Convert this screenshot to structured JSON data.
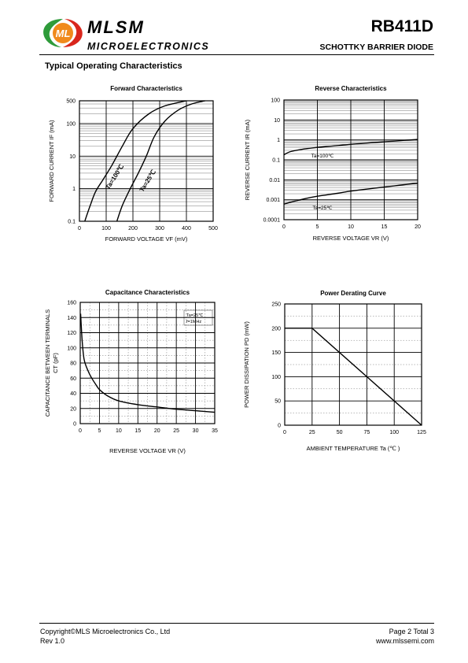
{
  "header": {
    "brand": "MLSM",
    "brand_sub": "MICROELECTRONICS",
    "logo_letters": "ML",
    "part_number": "RB411D",
    "part_desc": "SCHOTTKY BARRIER  DIODE"
  },
  "section_title": "Typical Operating Characteristics",
  "footer": {
    "copyright": "Copyright©MLS Microelectronics Co., Ltd",
    "rev": "Rev 1.0",
    "page": "Page 2 Total 3",
    "url": "www.mlssemi.com"
  },
  "colors": {
    "logo_green": "#2e9b3a",
    "logo_red": "#d9261c",
    "logo_orange": "#f08a1c"
  },
  "chart_data": [
    {
      "id": "forward",
      "type": "line",
      "title": "Forward  Characteristics",
      "xlabel": "FORWARD VOLTAGE  VF (mV)",
      "ylabel": "FORWARD CURRENT    IF (mA)",
      "xscale": "linear",
      "yscale": "log",
      "xlim": [
        0,
        500
      ],
      "ylim": [
        0.1,
        500
      ],
      "xticks": [
        0,
        100,
        200,
        300,
        400,
        500
      ],
      "yticks": [
        {
          "v": 0.1,
          "label": "0.1"
        },
        {
          "v": 1,
          "label": "1"
        },
        {
          "v": 10,
          "label": "10"
        },
        {
          "v": 100,
          "label": "100"
        },
        {
          "v": 500,
          "label": "500"
        }
      ],
      "grid": true,
      "series": [
        {
          "name": "Ta=100℃",
          "x": [
            20,
            40,
            60,
            90,
            120,
            160,
            200,
            260,
            320,
            400
          ],
          "y": [
            0.1,
            0.3,
            0.8,
            2,
            5,
            20,
            70,
            200,
            350,
            500
          ]
        },
        {
          "name": "Ta=25℃",
          "x": [
            140,
            160,
            190,
            220,
            250,
            280,
            320,
            370,
            420,
            470
          ],
          "y": [
            0.1,
            0.3,
            1,
            3,
            10,
            40,
            120,
            260,
            400,
            500
          ]
        }
      ],
      "annotations": [
        "Ta=100℃",
        "Ta=25℃"
      ]
    },
    {
      "id": "reverse",
      "type": "line",
      "title": "Reverse  Characteristics",
      "xlabel": "REVERSE VOLTAGE    VR (V)",
      "ylabel": "REVERSE CURRENT    IR  (mA)",
      "xscale": "linear",
      "yscale": "log",
      "xlim": [
        0,
        20
      ],
      "ylim": [
        0.0001,
        100
      ],
      "xticks": [
        0,
        5,
        10,
        15,
        20
      ],
      "yticks": [
        {
          "v": 0.0001,
          "label": "0.0001"
        },
        {
          "v": 0.001,
          "label": "0.001"
        },
        {
          "v": 0.01,
          "label": "0.01"
        },
        {
          "v": 0.1,
          "label": "0.1"
        },
        {
          "v": 1,
          "label": "1"
        },
        {
          "v": 10,
          "label": "10"
        },
        {
          "v": 100,
          "label": "100"
        }
      ],
      "grid": true,
      "series": [
        {
          "name": "Ta=100℃",
          "x": [
            0,
            1,
            3,
            5,
            8,
            10,
            13,
            15,
            18,
            20
          ],
          "y": [
            0.18,
            0.26,
            0.35,
            0.42,
            0.52,
            0.6,
            0.72,
            0.8,
            0.95,
            1.05
          ]
        },
        {
          "name": "Ta=25℃",
          "x": [
            0,
            1,
            3,
            5,
            8,
            10,
            13,
            15,
            18,
            20
          ],
          "y": [
            0.0006,
            0.00075,
            0.0011,
            0.0015,
            0.0021,
            0.0027,
            0.0036,
            0.0043,
            0.0057,
            0.0068
          ]
        }
      ],
      "annotations": [
        "Ta=100℃",
        "Ta=25℃"
      ]
    },
    {
      "id": "capacitance",
      "type": "line",
      "title": "Capacitance Characteristics",
      "xlabel": "REVERSE VOLTAGE    VR  (V)",
      "ylabel": "CAPACITANCE BETWEEN TERMINALS",
      "ylabel2": "CT (pF)",
      "xscale": "linear",
      "yscale": "linear",
      "xlim": [
        0,
        35
      ],
      "ylim": [
        0,
        160
      ],
      "xticks": [
        0,
        5,
        10,
        15,
        20,
        25,
        30,
        35
      ],
      "yticks": [
        {
          "v": 0,
          "label": "0"
        },
        {
          "v": 20,
          "label": "20"
        },
        {
          "v": 40,
          "label": "40"
        },
        {
          "v": 60,
          "label": "60"
        },
        {
          "v": 80,
          "label": "80"
        },
        {
          "v": 100,
          "label": "100"
        },
        {
          "v": 120,
          "label": "120"
        },
        {
          "v": 140,
          "label": "140"
        },
        {
          "v": 160,
          "label": "160"
        }
      ],
      "grid": true,
      "series": [
        {
          "name": "",
          "x": [
            0.1,
            0.5,
            1,
            2,
            3,
            4,
            5,
            7,
            10,
            15,
            20,
            25,
            30,
            35
          ],
          "y": [
            145,
            110,
            85,
            70,
            60,
            52,
            45,
            37,
            30,
            25,
            22,
            19,
            17,
            15
          ]
        }
      ],
      "annotations": [
        "Ta=25℃",
        "f=1MHz"
      ]
    },
    {
      "id": "derating",
      "type": "line",
      "title": "Power Derating Curve",
      "xlabel": "AMBIENT TEMPERATURE    Ta  (℃ )",
      "ylabel": "POWER  DISSIPATION  PD   (mW)",
      "xscale": "linear",
      "yscale": "linear",
      "xlim": [
        0,
        125
      ],
      "ylim": [
        0,
        250
      ],
      "xticks": [
        0,
        25,
        50,
        75,
        100,
        125
      ],
      "yticks": [
        {
          "v": 0,
          "label": "0"
        },
        {
          "v": 50,
          "label": "50"
        },
        {
          "v": 100,
          "label": "100"
        },
        {
          "v": 150,
          "label": "150"
        },
        {
          "v": 200,
          "label": "200"
        },
        {
          "v": 250,
          "label": "250"
        }
      ],
      "grid": true,
      "series": [
        {
          "name": "",
          "x": [
            0,
            25,
            125
          ],
          "y": [
            200,
            200,
            0
          ]
        }
      ],
      "annotations": []
    }
  ]
}
